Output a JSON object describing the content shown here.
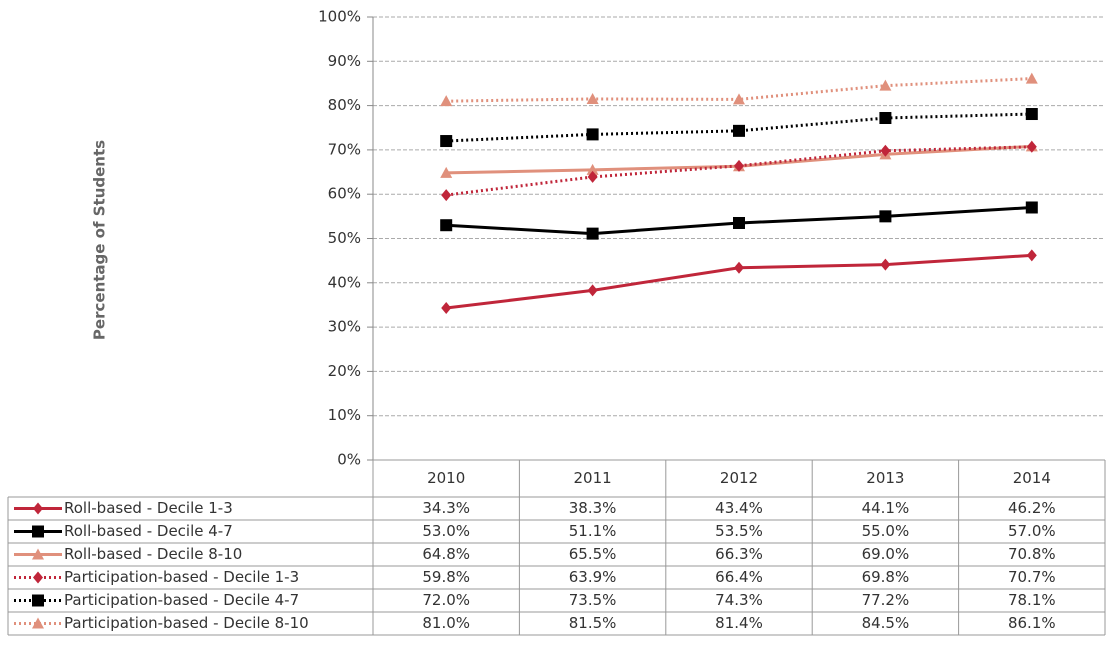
{
  "chart_data": {
    "type": "line",
    "y_label": "Percentage of Students",
    "categories": [
      "2010",
      "2011",
      "2012",
      "2013",
      "2014"
    ],
    "ylim": [
      0,
      100
    ],
    "yticks": [
      {
        "value": 0,
        "label": "0%"
      },
      {
        "value": 10,
        "label": "10%"
      },
      {
        "value": 20,
        "label": "20%"
      },
      {
        "value": 30,
        "label": "30%"
      },
      {
        "value": 40,
        "label": "40%"
      },
      {
        "value": 50,
        "label": "50%"
      },
      {
        "value": 60,
        "label": "60%"
      },
      {
        "value": 70,
        "label": "70%"
      },
      {
        "value": 80,
        "label": "80%"
      },
      {
        "value": 90,
        "label": "90%"
      },
      {
        "value": 100,
        "label": "100%"
      }
    ],
    "grid": true,
    "series": [
      {
        "name": "Roll-based - Decile 1-3",
        "color": "#c0263a",
        "style": "solid",
        "marker": "diamond",
        "values": [
          34.3,
          38.3,
          43.4,
          44.1,
          46.2
        ],
        "value_labels": [
          "34.3%",
          "38.3%",
          "43.4%",
          "44.1%",
          "46.2%"
        ]
      },
      {
        "name": "Roll-based - Decile 4-7",
        "color": "#000000",
        "style": "solid",
        "marker": "square",
        "values": [
          53.0,
          51.1,
          53.5,
          55.0,
          57.0
        ],
        "value_labels": [
          "53.0%",
          "51.1%",
          "53.5%",
          "55.0%",
          "57.0%"
        ]
      },
      {
        "name": "Roll-based - Decile 8-10",
        "color": "#e0907c",
        "style": "solid",
        "marker": "triangle",
        "values": [
          64.8,
          65.5,
          66.3,
          69.0,
          70.8
        ],
        "value_labels": [
          "64.8%",
          "65.5%",
          "66.3%",
          "69.0%",
          "70.8%"
        ]
      },
      {
        "name": "Participation-based - Decile 1-3",
        "color": "#c0263a",
        "style": "dotted",
        "marker": "diamond",
        "values": [
          59.8,
          63.9,
          66.4,
          69.8,
          70.7
        ],
        "value_labels": [
          "59.8%",
          "63.9%",
          "66.4%",
          "69.8%",
          "70.7%"
        ]
      },
      {
        "name": "Participation-based - Decile 4-7",
        "color": "#000000",
        "style": "dotted",
        "marker": "square",
        "values": [
          72.0,
          73.5,
          74.3,
          77.2,
          78.1
        ],
        "value_labels": [
          "72.0%",
          "73.5%",
          "74.3%",
          "77.2%",
          "78.1%"
        ]
      },
      {
        "name": "Participation-based - Decile 8-10",
        "color": "#e0907c",
        "style": "dotted",
        "marker": "triangle",
        "values": [
          81.0,
          81.5,
          81.4,
          84.5,
          86.1
        ],
        "value_labels": [
          "81.0%",
          "81.5%",
          "81.4%",
          "84.5%",
          "86.1%"
        ]
      }
    ]
  }
}
